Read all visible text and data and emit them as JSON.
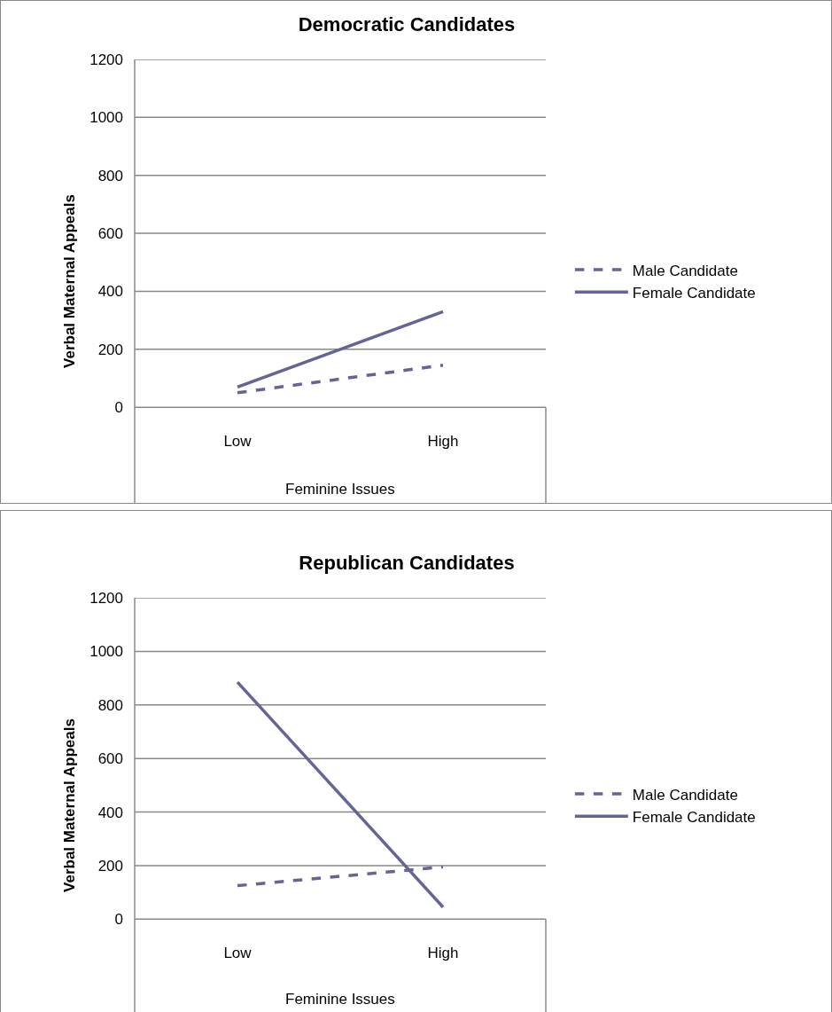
{
  "chart_data": [
    {
      "type": "line",
      "title": "Democratic Candidates",
      "xlabel": "Feminine Issues",
      "ylabel": "Verbal Maternal Appeals",
      "categories": [
        "Low",
        "High"
      ],
      "series": [
        {
          "name": "Male Candidate",
          "color": "#646496",
          "values": [
            50,
            145
          ],
          "line_style": "dashed"
        },
        {
          "name": "Female Candidate",
          "color": "#646496",
          "values": [
            70,
            330
          ],
          "line_style": "solid"
        }
      ],
      "ylim": [
        -330,
        1200
      ],
      "yticks": [
        0,
        200,
        400,
        600,
        800,
        1000,
        1200
      ],
      "grid": "y",
      "legend": "right"
    },
    {
      "type": "line",
      "title": "Republican Candidates",
      "xlabel": "Feminine Issues",
      "ylabel": "Verbal Maternal Appeals",
      "categories": [
        "Low",
        "High"
      ],
      "series": [
        {
          "name": "Male Candidate",
          "color": "#646496",
          "values": [
            125,
            195
          ],
          "line_style": "dashed"
        },
        {
          "name": "Female Candidate",
          "color": "#646496",
          "values": [
            885,
            45
          ],
          "line_style": "solid"
        }
      ],
      "ylim": [
        -350,
        1200
      ],
      "yticks": [
        0,
        200,
        400,
        600,
        800,
        1000,
        1200
      ],
      "grid": "y",
      "legend": "right"
    }
  ]
}
